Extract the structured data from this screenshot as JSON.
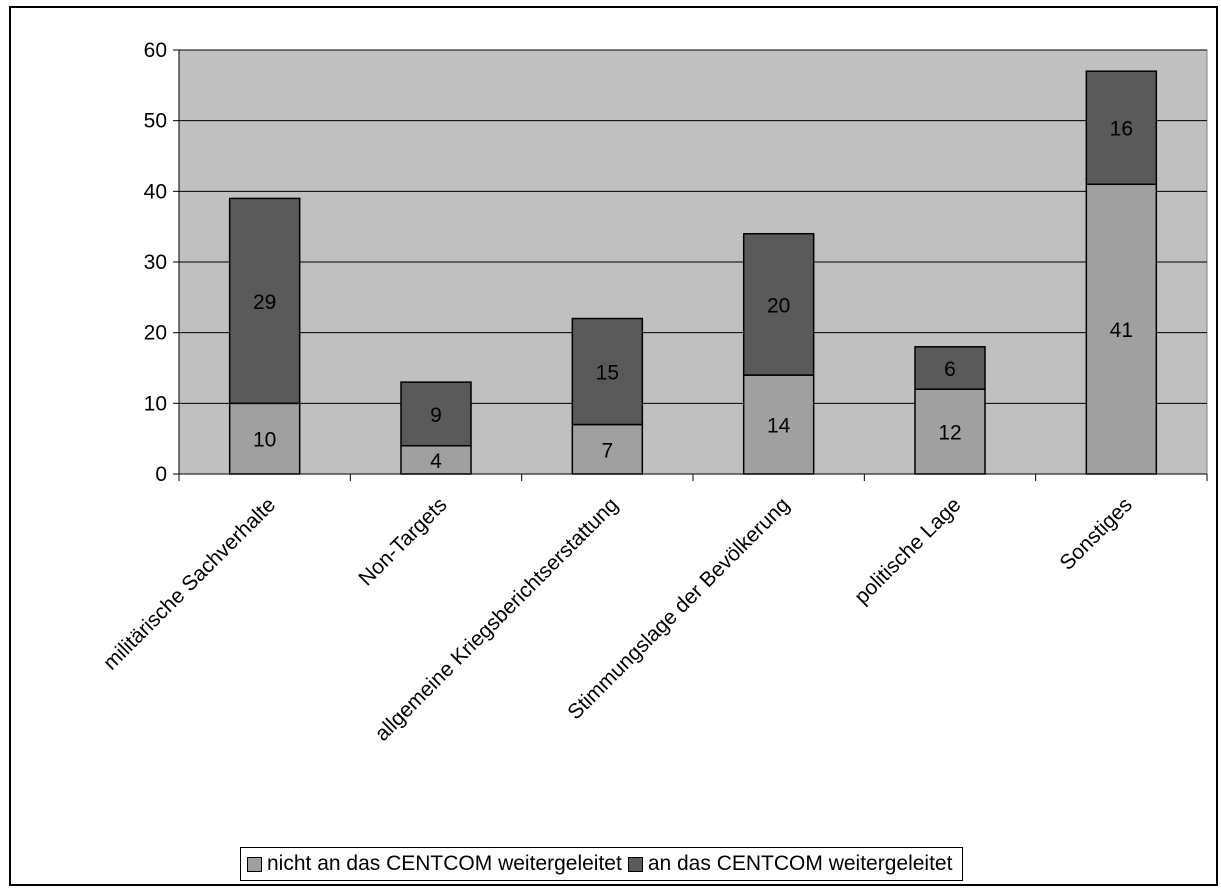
{
  "chart_data": {
    "type": "bar",
    "stacked": true,
    "title": "",
    "xlabel": "",
    "ylabel": "",
    "categories": [
      "militärische Sachverhalte",
      "Non-Targets",
      "allgemeine Kriegsberichtserstattung",
      "Stimmungslage der Bevölkerung",
      "politische Lage",
      "Sonstiges"
    ],
    "series": [
      {
        "name": "nicht an das CENTCOM weitergeleitet",
        "values": [
          10,
          4,
          7,
          14,
          12,
          41
        ],
        "color": "#a0a0a0"
      },
      {
        "name": "an das CENTCOM weitergeleitet",
        "values": [
          29,
          9,
          15,
          20,
          6,
          16
        ],
        "color": "#5a5a5a"
      }
    ],
    "ylim": [
      0,
      60
    ],
    "yticks": [
      "0",
      "10",
      "20",
      "30",
      "40",
      "50",
      "60"
    ],
    "grid": true,
    "legend": "bottom",
    "plot_background": "#c0c0c0"
  }
}
